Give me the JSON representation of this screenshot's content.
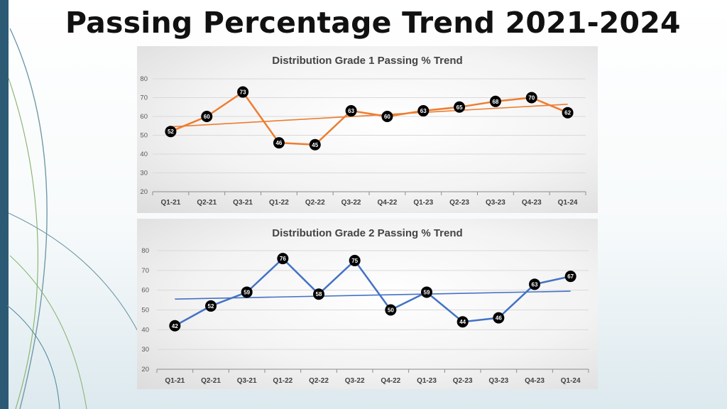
{
  "page": {
    "title": "Passing Percentage Trend 2021-2024",
    "accent_color": "#2c5a74"
  },
  "chart_data": [
    {
      "type": "line",
      "title": "Distribution Grade 1 Passing % Trend",
      "categories": [
        "Q1-21",
        "Q2-21",
        "Q3-21",
        "Q1-22",
        "Q2-22",
        "Q3-22",
        "Q4-22",
        "Q1-23",
        "Q2-23",
        "Q3-23",
        "Q4-23",
        "Q1-24"
      ],
      "series": [
        {
          "values": [
            52,
            60,
            73,
            46,
            45,
            63,
            60,
            63,
            65,
            68,
            70,
            62
          ],
          "color": "#ed7d31"
        }
      ],
      "trendline": {
        "type": "linear",
        "start": 54.5,
        "end": 66.5,
        "color": "#ed7d31"
      },
      "ylim": [
        20,
        80
      ],
      "yticks": [
        20,
        30,
        40,
        50,
        60,
        70,
        80
      ],
      "grid": true,
      "legend": false
    },
    {
      "type": "line",
      "title": "Distribution Grade 2 Passing % Trend",
      "categories": [
        "Q1-21",
        "Q2-21",
        "Q3-21",
        "Q1-22",
        "Q2-22",
        "Q3-22",
        "Q4-22",
        "Q1-23",
        "Q2-23",
        "Q3-23",
        "Q4-23",
        "Q1-24"
      ],
      "series": [
        {
          "values": [
            42,
            52,
            59,
            76,
            58,
            75,
            50,
            59,
            44,
            46,
            63,
            67
          ],
          "color": "#4472c4"
        }
      ],
      "trendline": {
        "type": "linear",
        "start": 55.5,
        "end": 59.5,
        "color": "#4472c4"
      },
      "ylim": [
        20,
        80
      ],
      "yticks": [
        20,
        30,
        40,
        50,
        60,
        70,
        80
      ],
      "grid": true,
      "legend": false
    }
  ]
}
